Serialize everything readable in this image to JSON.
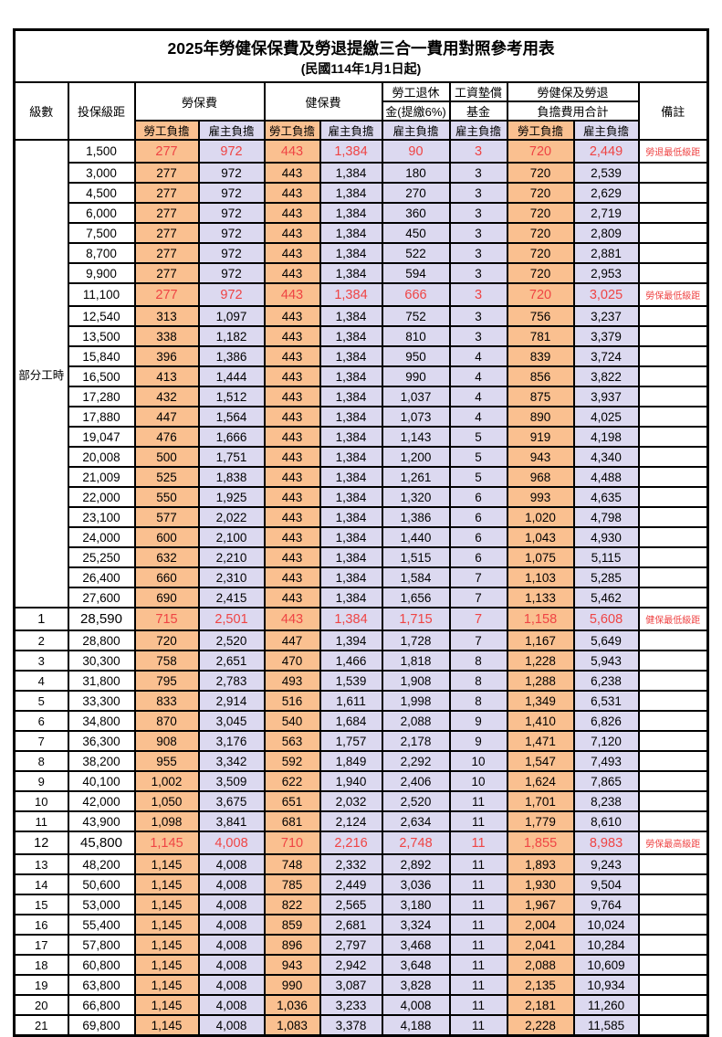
{
  "title": "2025年勞健保保費及勞退提繳三合一費用對照參考用表",
  "subtitle": "(民國114年1月1日起)",
  "colors": {
    "employee_bg": "#FAC090",
    "employer_bg": "#DCD9F0",
    "highlight_red": "#EF4444",
    "grid": "#000000"
  },
  "header": {
    "level": "級數",
    "bracket": "投保級距",
    "labor_ins": "勞保費",
    "health_ins": "健保費",
    "pension_line1": "勞工退休",
    "pension_line2": "金(提繳6%)",
    "wage_fund_line1": "工資墊償",
    "wage_fund_line2": "基金",
    "total_line1": "勞健保及勞退",
    "total_line2": "負擔費用合計",
    "remark": "備註",
    "employee_share": "勞工負擔",
    "employer_share": "雇主負擔"
  },
  "part_time_label": "部分工時",
  "rows": [
    {
      "lv": "",
      "br": "1,500",
      "v": [
        "277",
        "972",
        "443",
        "1,384",
        "90",
        "3",
        "720",
        "2,449"
      ],
      "rm": "勞退最低級距",
      "sp": true
    },
    {
      "lv": "",
      "br": "3,000",
      "v": [
        "277",
        "972",
        "443",
        "1,384",
        "180",
        "3",
        "720",
        "2,539"
      ],
      "rm": ""
    },
    {
      "lv": "",
      "br": "4,500",
      "v": [
        "277",
        "972",
        "443",
        "1,384",
        "270",
        "3",
        "720",
        "2,629"
      ],
      "rm": ""
    },
    {
      "lv": "",
      "br": "6,000",
      "v": [
        "277",
        "972",
        "443",
        "1,384",
        "360",
        "3",
        "720",
        "2,719"
      ],
      "rm": ""
    },
    {
      "lv": "",
      "br": "7,500",
      "v": [
        "277",
        "972",
        "443",
        "1,384",
        "450",
        "3",
        "720",
        "2,809"
      ],
      "rm": ""
    },
    {
      "lv": "",
      "br": "8,700",
      "v": [
        "277",
        "972",
        "443",
        "1,384",
        "522",
        "3",
        "720",
        "2,881"
      ],
      "rm": ""
    },
    {
      "lv": "",
      "br": "9,900",
      "v": [
        "277",
        "972",
        "443",
        "1,384",
        "594",
        "3",
        "720",
        "2,953"
      ],
      "rm": ""
    },
    {
      "lv": "",
      "br": "11,100",
      "v": [
        "277",
        "972",
        "443",
        "1,384",
        "666",
        "3",
        "720",
        "3,025"
      ],
      "rm": "勞保最低級距",
      "sp": true
    },
    {
      "lv": "",
      "br": "12,540",
      "v": [
        "313",
        "1,097",
        "443",
        "1,384",
        "752",
        "3",
        "756",
        "3,237"
      ],
      "rm": ""
    },
    {
      "lv": "",
      "br": "13,500",
      "v": [
        "338",
        "1,182",
        "443",
        "1,384",
        "810",
        "3",
        "781",
        "3,379"
      ],
      "rm": ""
    },
    {
      "lv": "",
      "br": "15,840",
      "v": [
        "396",
        "1,386",
        "443",
        "1,384",
        "950",
        "4",
        "839",
        "3,724"
      ],
      "rm": ""
    },
    {
      "lv": "",
      "br": "16,500",
      "v": [
        "413",
        "1,444",
        "443",
        "1,384",
        "990",
        "4",
        "856",
        "3,822"
      ],
      "rm": ""
    },
    {
      "lv": "",
      "br": "17,280",
      "v": [
        "432",
        "1,512",
        "443",
        "1,384",
        "1,037",
        "4",
        "875",
        "3,937"
      ],
      "rm": ""
    },
    {
      "lv": "",
      "br": "17,880",
      "v": [
        "447",
        "1,564",
        "443",
        "1,384",
        "1,073",
        "4",
        "890",
        "4,025"
      ],
      "rm": ""
    },
    {
      "lv": "",
      "br": "19,047",
      "v": [
        "476",
        "1,666",
        "443",
        "1,384",
        "1,143",
        "5",
        "919",
        "4,198"
      ],
      "rm": ""
    },
    {
      "lv": "",
      "br": "20,008",
      "v": [
        "500",
        "1,751",
        "443",
        "1,384",
        "1,200",
        "5",
        "943",
        "4,340"
      ],
      "rm": ""
    },
    {
      "lv": "",
      "br": "21,009",
      "v": [
        "525",
        "1,838",
        "443",
        "1,384",
        "1,261",
        "5",
        "968",
        "4,488"
      ],
      "rm": ""
    },
    {
      "lv": "",
      "br": "22,000",
      "v": [
        "550",
        "1,925",
        "443",
        "1,384",
        "1,320",
        "6",
        "993",
        "4,635"
      ],
      "rm": ""
    },
    {
      "lv": "",
      "br": "23,100",
      "v": [
        "577",
        "2,022",
        "443",
        "1,384",
        "1,386",
        "6",
        "1,020",
        "4,798"
      ],
      "rm": ""
    },
    {
      "lv": "",
      "br": "24,000",
      "v": [
        "600",
        "2,100",
        "443",
        "1,384",
        "1,440",
        "6",
        "1,043",
        "4,930"
      ],
      "rm": ""
    },
    {
      "lv": "",
      "br": "25,250",
      "v": [
        "632",
        "2,210",
        "443",
        "1,384",
        "1,515",
        "6",
        "1,075",
        "5,115"
      ],
      "rm": ""
    },
    {
      "lv": "",
      "br": "26,400",
      "v": [
        "660",
        "2,310",
        "443",
        "1,384",
        "1,584",
        "7",
        "1,103",
        "5,285"
      ],
      "rm": ""
    },
    {
      "lv": "",
      "br": "27,600",
      "v": [
        "690",
        "2,415",
        "443",
        "1,384",
        "1,656",
        "7",
        "1,133",
        "5,462"
      ],
      "rm": ""
    },
    {
      "lv": "1",
      "br": "28,590",
      "v": [
        "715",
        "2,501",
        "443",
        "1,384",
        "1,715",
        "7",
        "1,158",
        "5,608"
      ],
      "rm": "健保最低級距",
      "sp": true,
      "em": true
    },
    {
      "lv": "2",
      "br": "28,800",
      "v": [
        "720",
        "2,520",
        "447",
        "1,394",
        "1,728",
        "7",
        "1,167",
        "5,649"
      ],
      "rm": ""
    },
    {
      "lv": "3",
      "br": "30,300",
      "v": [
        "758",
        "2,651",
        "470",
        "1,466",
        "1,818",
        "8",
        "1,228",
        "5,943"
      ],
      "rm": ""
    },
    {
      "lv": "4",
      "br": "31,800",
      "v": [
        "795",
        "2,783",
        "493",
        "1,539",
        "1,908",
        "8",
        "1,288",
        "6,238"
      ],
      "rm": ""
    },
    {
      "lv": "5",
      "br": "33,300",
      "v": [
        "833",
        "2,914",
        "516",
        "1,611",
        "1,998",
        "8",
        "1,349",
        "6,531"
      ],
      "rm": ""
    },
    {
      "lv": "6",
      "br": "34,800",
      "v": [
        "870",
        "3,045",
        "540",
        "1,684",
        "2,088",
        "9",
        "1,410",
        "6,826"
      ],
      "rm": ""
    },
    {
      "lv": "7",
      "br": "36,300",
      "v": [
        "908",
        "3,176",
        "563",
        "1,757",
        "2,178",
        "9",
        "1,471",
        "7,120"
      ],
      "rm": ""
    },
    {
      "lv": "8",
      "br": "38,200",
      "v": [
        "955",
        "3,342",
        "592",
        "1,849",
        "2,292",
        "10",
        "1,547",
        "7,493"
      ],
      "rm": ""
    },
    {
      "lv": "9",
      "br": "40,100",
      "v": [
        "1,002",
        "3,509",
        "622",
        "1,940",
        "2,406",
        "10",
        "1,624",
        "7,865"
      ],
      "rm": ""
    },
    {
      "lv": "10",
      "br": "42,000",
      "v": [
        "1,050",
        "3,675",
        "651",
        "2,032",
        "2,520",
        "11",
        "1,701",
        "8,238"
      ],
      "rm": ""
    },
    {
      "lv": "11",
      "br": "43,900",
      "v": [
        "1,098",
        "3,841",
        "681",
        "2,124",
        "2,634",
        "11",
        "1,779",
        "8,610"
      ],
      "rm": ""
    },
    {
      "lv": "12",
      "br": "45,800",
      "v": [
        "1,145",
        "4,008",
        "710",
        "2,216",
        "2,748",
        "11",
        "1,855",
        "8,983"
      ],
      "rm": "勞保最高級距",
      "sp": true,
      "em": true
    },
    {
      "lv": "13",
      "br": "48,200",
      "v": [
        "1,145",
        "4,008",
        "748",
        "2,332",
        "2,892",
        "11",
        "1,893",
        "9,243"
      ],
      "rm": ""
    },
    {
      "lv": "14",
      "br": "50,600",
      "v": [
        "1,145",
        "4,008",
        "785",
        "2,449",
        "3,036",
        "11",
        "1,930",
        "9,504"
      ],
      "rm": ""
    },
    {
      "lv": "15",
      "br": "53,000",
      "v": [
        "1,145",
        "4,008",
        "822",
        "2,565",
        "3,180",
        "11",
        "1,967",
        "9,764"
      ],
      "rm": ""
    },
    {
      "lv": "16",
      "br": "55,400",
      "v": [
        "1,145",
        "4,008",
        "859",
        "2,681",
        "3,324",
        "11",
        "2,004",
        "10,024"
      ],
      "rm": ""
    },
    {
      "lv": "17",
      "br": "57,800",
      "v": [
        "1,145",
        "4,008",
        "896",
        "2,797",
        "3,468",
        "11",
        "2,041",
        "10,284"
      ],
      "rm": ""
    },
    {
      "lv": "18",
      "br": "60,800",
      "v": [
        "1,145",
        "4,008",
        "943",
        "2,942",
        "3,648",
        "11",
        "2,088",
        "10,609"
      ],
      "rm": ""
    },
    {
      "lv": "19",
      "br": "63,800",
      "v": [
        "1,145",
        "4,008",
        "990",
        "3,087",
        "3,828",
        "11",
        "2,135",
        "10,934"
      ],
      "rm": ""
    },
    {
      "lv": "20",
      "br": "66,800",
      "v": [
        "1,145",
        "4,008",
        "1,036",
        "3,233",
        "4,008",
        "11",
        "2,181",
        "11,260"
      ],
      "rm": ""
    },
    {
      "lv": "21",
      "br": "69,800",
      "v": [
        "1,145",
        "4,008",
        "1,083",
        "3,378",
        "4,188",
        "11",
        "2,228",
        "11,585"
      ],
      "rm": ""
    }
  ]
}
